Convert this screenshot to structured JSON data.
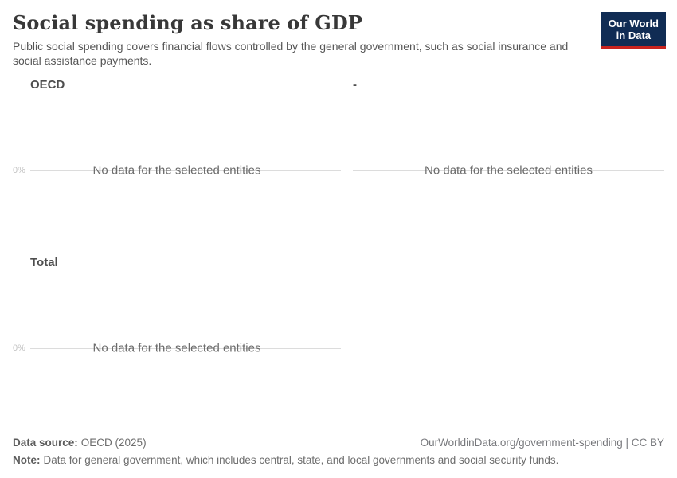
{
  "header": {
    "title": "Social spending as share of GDP",
    "subtitle": "Public social spending covers financial flows controlled by the general government, such as social insurance and social assistance payments.",
    "logo_line1": "Our World",
    "logo_line2": "in Data"
  },
  "colors": {
    "logo_background": "#102c54",
    "logo_stripe": "#c8231e",
    "axis_line": "#dcdcdc",
    "title_text": "#383838",
    "muted_text": "#6b6b6b",
    "tick_text": "#c2c2c2"
  },
  "chart_data": {
    "type": "line",
    "title": "Social spending as share of GDP",
    "subtitle": "Public social spending covers financial flows controlled by the general government, such as social insurance and social assistance payments.",
    "layout": "faceted, 2 columns; y-axis baseline tick 0% shown on left column only; no gridlines; no legend",
    "facets": [
      {
        "title": "OECD",
        "y_ticks": [
          "0%"
        ],
        "message": "No data for the selected entities",
        "series": []
      },
      {
        "title": "-",
        "y_ticks": [],
        "message": "No data for the selected entities",
        "series": []
      },
      {
        "title": "Total",
        "y_ticks": [
          "0%"
        ],
        "message": "No data for the selected entities",
        "series": []
      }
    ],
    "values": []
  },
  "footer": {
    "data_source_label": "Data source:",
    "data_source_value": "OECD (2025)",
    "citation": "OurWorldinData.org/government-spending | CC BY",
    "note_label": "Note:",
    "note_value": "Data for general government, which includes central, state, and local governments and social security funds."
  }
}
